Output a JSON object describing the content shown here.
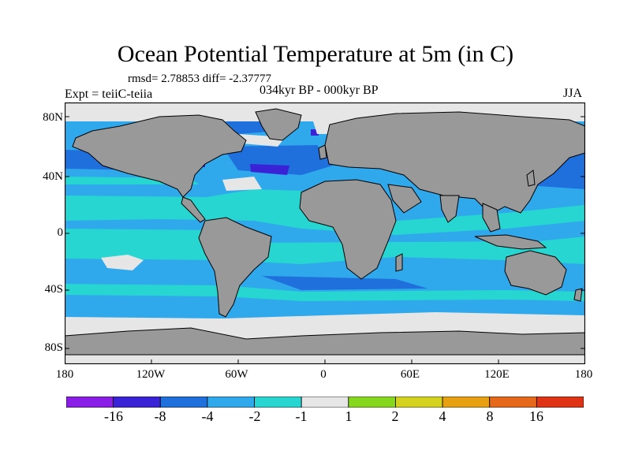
{
  "title": "Ocean Potential Temperature at 5m (in C)",
  "stats": "rmsd= 2.78853 diff= -2.37777",
  "experiment": "Expt = teiiC-teiia",
  "period": "034kyr BP - 000kyr BP",
  "season": "JJA",
  "y_ticks": [
    "80N",
    "40N",
    "0",
    "40S",
    "80S"
  ],
  "x_ticks": [
    "180",
    "120W",
    "60W",
    "0",
    "60E",
    "120E",
    "180"
  ],
  "colorbar": {
    "labels": [
      "-16",
      "-8",
      "-4",
      "-2",
      "-1",
      "1",
      "2",
      "4",
      "8",
      "16"
    ],
    "colors": [
      "#8a1ee6",
      "#3a23d6",
      "#1f6fdc",
      "#2fa8ec",
      "#27d6d0",
      "#e6e6e6",
      "#86d81e",
      "#d4d21e",
      "#e6a012",
      "#e6681a",
      "#e03214"
    ]
  },
  "map_colors": {
    "land": "#999999",
    "ocean_base": "#2fa8ec",
    "cyan": "#27d6d0",
    "blue": "#1f6fdc",
    "deep_blue": "#3a23d6",
    "light": "#e6e6e6"
  }
}
